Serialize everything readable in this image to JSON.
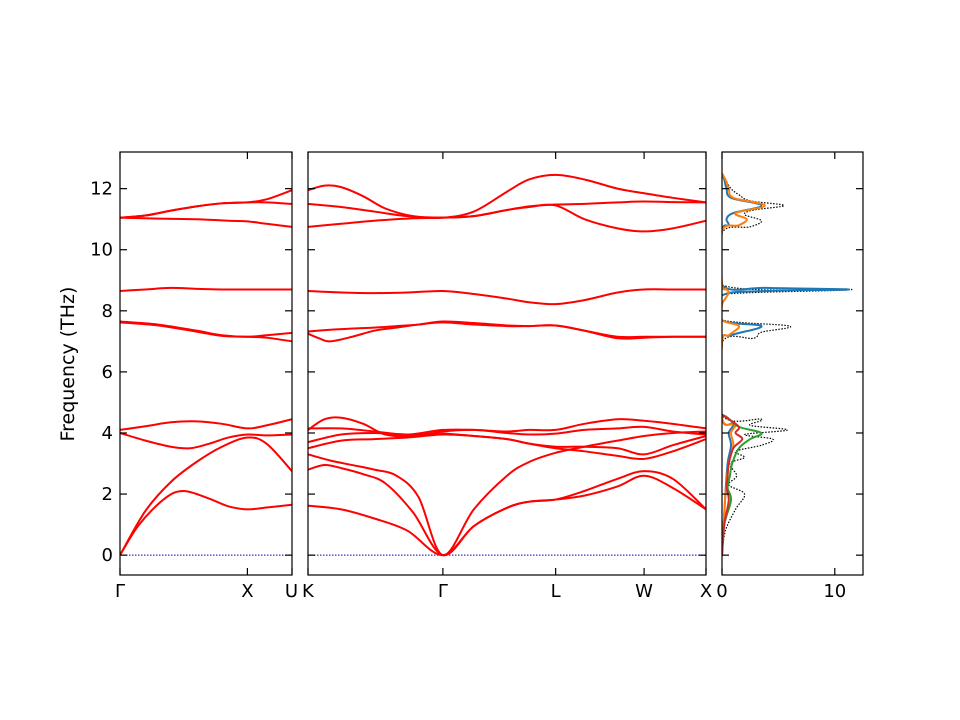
{
  "chart_data": {
    "type": "line",
    "title": "",
    "ylabel": "Frequency (THz)",
    "ylim": [
      -0.65,
      13.2
    ],
    "yticks": [
      0,
      2,
      4,
      6,
      8,
      10,
      12
    ],
    "band_color": "#ff0000",
    "zero_line_color": "#0000cc",
    "panels": [
      {
        "name": "band-gamma-x-u",
        "tick_labels": [
          "Γ",
          "X",
          "U"
        ],
        "xlim": [
          0,
          1.35
        ],
        "label_positions": [
          0,
          1.0,
          1.35
        ],
        "series": [
          {
            "x": [
              0,
              0.15,
              0.35,
              0.5,
              0.7,
              0.85,
              1.0,
              1.15,
              1.35
            ],
            "values": [
              0,
              1.0,
              1.85,
              2.1,
              1.85,
              1.6,
              1.5,
              1.56,
              1.65
            ]
          },
          {
            "x": [
              0,
              0.2,
              0.4,
              0.6,
              0.8,
              1.0,
              1.15,
              1.35
            ],
            "values": [
              0,
              1.45,
              2.4,
              3.05,
              3.55,
              3.85,
              3.65,
              2.75
            ]
          },
          {
            "x": [
              0,
              0.2,
              0.4,
              0.55,
              0.7,
              0.85,
              1.0,
              1.15,
              1.35
            ],
            "values": [
              4.0,
              3.75,
              3.55,
              3.5,
              3.65,
              3.85,
              3.95,
              3.92,
              3.95
            ]
          },
          {
            "x": [
              0,
              0.2,
              0.4,
              0.6,
              0.8,
              1.0,
              1.15,
              1.35
            ],
            "values": [
              4.1,
              4.22,
              4.35,
              4.38,
              4.3,
              4.15,
              4.25,
              4.45
            ]
          },
          {
            "x": [
              0,
              0.3,
              0.6,
              0.8,
              1.0,
              1.15,
              1.35
            ],
            "values": [
              7.62,
              7.52,
              7.32,
              7.18,
              7.15,
              7.12,
              7.0
            ]
          },
          {
            "x": [
              0,
              0.3,
              0.6,
              0.8,
              1.0,
              1.15,
              1.35
            ],
            "values": [
              7.65,
              7.55,
              7.35,
              7.2,
              7.15,
              7.2,
              7.28
            ]
          },
          {
            "x": [
              0,
              0.2,
              0.4,
              0.6,
              0.8,
              1.0,
              1.35
            ],
            "values": [
              8.65,
              8.7,
              8.75,
              8.72,
              8.7,
              8.7,
              8.7
            ]
          },
          {
            "x": [
              0,
              0.3,
              0.6,
              0.85,
              1.0,
              1.15,
              1.35
            ],
            "values": [
              11.05,
              11.02,
              11.0,
              10.95,
              10.93,
              10.85,
              10.75
            ]
          },
          {
            "x": [
              0,
              0.2,
              0.4,
              0.6,
              0.8,
              1.0,
              1.15,
              1.35
            ],
            "values": [
              11.05,
              11.12,
              11.28,
              11.42,
              11.52,
              11.55,
              11.55,
              11.5
            ]
          },
          {
            "x": [
              0,
              0.2,
              0.4,
              0.6,
              0.8,
              1.0,
              1.15,
              1.35
            ],
            "values": [
              11.05,
              11.12,
              11.28,
              11.42,
              11.52,
              11.55,
              11.65,
              11.95
            ]
          }
        ]
      },
      {
        "name": "band-k-gamma-l-w-x",
        "tick_labels": [
          "K",
          "Γ",
          "L",
          "W",
          "X"
        ],
        "xlim": [
          0,
          3.6
        ],
        "label_positions": [
          0,
          1.22,
          2.24,
          3.04,
          3.6
        ],
        "series": [
          {
            "x": [
              0,
              0.3,
              0.6,
              0.9,
              1.22,
              1.5,
              1.8,
              2.0,
              2.24,
              2.5,
              2.8,
              3.04,
              3.3,
              3.6
            ],
            "values": [
              1.62,
              1.5,
              1.2,
              0.8,
              0,
              0.95,
              1.55,
              1.75,
              1.82,
              1.95,
              2.25,
              2.6,
              2.2,
              1.5
            ]
          },
          {
            "x": [
              0,
              0.15,
              0.3,
              0.5,
              0.7,
              0.95,
              1.22,
              1.5,
              1.8,
              2.0,
              2.24,
              2.5,
              2.8,
              3.04,
              3.3,
              3.6
            ],
            "values": [
              2.8,
              2.95,
              2.85,
              2.65,
              2.35,
              1.4,
              0,
              0.95,
              1.55,
              1.75,
              1.82,
              2.1,
              2.5,
              2.75,
              2.5,
              1.5
            ]
          },
          {
            "x": [
              0,
              0.2,
              0.4,
              0.6,
              0.8,
              1.0,
              1.22,
              1.5,
              1.8,
              2.0,
              2.24,
              2.5,
              2.8,
              3.04,
              3.3,
              3.6
            ],
            "values": [
              3.3,
              3.1,
              2.95,
              2.8,
              2.6,
              1.9,
              0,
              1.5,
              2.6,
              3.05,
              3.35,
              3.55,
              3.75,
              3.9,
              4.0,
              4.05
            ]
          },
          {
            "x": [
              0,
              0.3,
              0.6,
              0.9,
              1.22,
              1.5,
              1.8,
              2.0,
              2.24,
              2.5,
              2.8,
              3.04,
              3.3,
              3.6
            ],
            "values": [
              3.5,
              3.75,
              3.8,
              3.85,
              3.95,
              3.9,
              3.8,
              3.65,
              3.5,
              3.4,
              3.25,
              3.15,
              3.4,
              3.8
            ]
          },
          {
            "x": [
              0,
              0.3,
              0.6,
              0.9,
              1.22,
              1.5,
              1.8,
              2.0,
              2.24,
              2.5,
              2.8,
              3.04,
              3.3,
              3.6
            ],
            "values": [
              3.7,
              3.95,
              4.0,
              3.95,
              3.98,
              3.9,
              3.8,
              3.65,
              3.55,
              3.55,
              3.5,
              3.3,
              3.6,
              3.9
            ]
          },
          {
            "x": [
              0,
              0.15,
              0.3,
              0.5,
              0.7,
              0.95,
              1.22,
              1.5,
              1.8,
              2.0,
              2.24,
              2.5,
              2.8,
              3.04,
              3.3,
              3.6
            ],
            "values": [
              4.1,
              4.45,
              4.5,
              4.3,
              3.95,
              3.9,
              4.05,
              4.1,
              4.0,
              3.95,
              3.98,
              4.1,
              4.15,
              4.2,
              4.05,
              3.95
            ]
          },
          {
            "x": [
              0,
              0.3,
              0.6,
              0.9,
              1.22,
              1.5,
              1.8,
              2.0,
              2.24,
              2.5,
              2.8,
              3.04,
              3.3,
              3.6
            ],
            "values": [
              4.15,
              4.15,
              4.05,
              3.95,
              4.1,
              4.1,
              4.05,
              4.1,
              4.1,
              4.3,
              4.45,
              4.4,
              4.3,
              4.15
            ]
          },
          {
            "x": [
              0,
              0.1,
              0.2,
              0.4,
              0.6,
              0.8,
              1.0,
              1.22,
              1.5,
              1.8,
              2.0,
              2.24,
              2.5,
              2.8,
              3.04,
              3.3,
              3.6
            ],
            "values": [
              7.25,
              7.1,
              7.0,
              7.15,
              7.35,
              7.45,
              7.55,
              7.62,
              7.55,
              7.5,
              7.5,
              7.52,
              7.35,
              7.1,
              7.12,
              7.15,
              7.15
            ]
          },
          {
            "x": [
              0,
              0.2,
              0.4,
              0.6,
              0.8,
              1.0,
              1.22,
              1.5,
              1.8,
              2.0,
              2.24,
              2.5,
              2.8,
              3.04,
              3.3,
              3.6
            ],
            "values": [
              7.32,
              7.38,
              7.42,
              7.45,
              7.5,
              7.55,
              7.65,
              7.6,
              7.52,
              7.5,
              7.52,
              7.35,
              7.15,
              7.15,
              7.15,
              7.15
            ]
          },
          {
            "x": [
              0,
              0.3,
              0.6,
              0.9,
              1.22,
              1.5,
              1.8,
              2.0,
              2.24,
              2.5,
              2.8,
              3.04,
              3.3,
              3.6
            ],
            "values": [
              8.65,
              8.6,
              8.58,
              8.6,
              8.65,
              8.55,
              8.4,
              8.28,
              8.22,
              8.35,
              8.6,
              8.7,
              8.7,
              8.7
            ]
          },
          {
            "x": [
              0,
              0.3,
              0.6,
              0.9,
              1.22,
              1.5,
              1.8,
              2.0,
              2.24,
              2.5,
              2.8,
              3.04,
              3.3,
              3.6
            ],
            "values": [
              10.75,
              10.85,
              10.95,
              11.02,
              11.05,
              11.1,
              11.3,
              11.4,
              11.45,
              11.0,
              10.7,
              10.6,
              10.7,
              10.95
            ]
          },
          {
            "x": [
              0,
              0.3,
              0.6,
              0.9,
              1.22,
              1.5,
              1.8,
              2.0,
              2.24,
              2.5,
              2.8,
              3.04,
              3.3,
              3.6
            ],
            "values": [
              11.5,
              11.4,
              11.25,
              11.1,
              11.05,
              11.1,
              11.3,
              11.42,
              11.48,
              11.5,
              11.55,
              11.58,
              11.56,
              11.55
            ]
          },
          {
            "x": [
              0,
              0.15,
              0.3,
              0.5,
              0.7,
              0.95,
              1.22,
              1.5,
              1.8,
              2.0,
              2.24,
              2.5,
              2.8,
              3.04,
              3.3,
              3.6
            ],
            "values": [
              11.95,
              12.1,
              12.05,
              11.75,
              11.35,
              11.1,
              11.05,
              11.25,
              11.9,
              12.3,
              12.45,
              12.3,
              12.0,
              11.85,
              11.7,
              11.55
            ]
          }
        ]
      },
      {
        "name": "dos",
        "tick_labels": [
          "0",
          "10"
        ],
        "xlim": [
          0,
          12.5
        ],
        "label_positions": [
          0,
          10
        ],
        "series": [
          {
            "name": "total",
            "color": "#000000",
            "dotted": true,
            "y": [
              0,
              0.8,
              1.5,
              2.0,
              2.3,
              2.6,
              3.0,
              3.2,
              3.4,
              3.6,
              3.8,
              3.95,
              4.1,
              4.25,
              4.45,
              4.6,
              6.95,
              7.1,
              7.3,
              7.5,
              7.7,
              8.2,
              8.55,
              8.7,
              8.85,
              10.55,
              10.75,
              10.95,
              11.15,
              11.3,
              11.45,
              11.6,
              11.8,
              12.0,
              12.3,
              12.5
            ],
            "values": [
              0,
              0.3,
              1.2,
              2.0,
              0.6,
              1.3,
              0.7,
              2.0,
              1.2,
              3.5,
              4.5,
              2.0,
              5.8,
              2.5,
              3.5,
              0,
              0,
              2.8,
              3.5,
              6.0,
              0,
              0,
              0.5,
              11.5,
              0,
              0,
              2.5,
              3.5,
              2.0,
              2.8,
              5.5,
              2.5,
              1.5,
              0.8,
              0.3,
              0
            ]
          },
          {
            "name": "c1",
            "color": "#1f77b4",
            "y": [
              0,
              2.0,
              3.0,
              3.6,
              4.0,
              4.3,
              4.5,
              6.95,
              7.2,
              7.5,
              7.7,
              8.5,
              8.65,
              8.7,
              8.75,
              8.85,
              10.6,
              10.8,
              11.0,
              11.2,
              11.45,
              11.7,
              12.0,
              12.3,
              12.5
            ],
            "values": [
              0,
              0.3,
              0.5,
              0.8,
              0.6,
              1.0,
              0,
              0,
              0.8,
              3.5,
              0,
              0,
              4.0,
              11.2,
              4.0,
              0,
              0,
              0.6,
              0.4,
              1.0,
              3.5,
              0.8,
              0.4,
              0.2,
              0
            ]
          },
          {
            "name": "c2",
            "color": "#ff7f0e",
            "y": [
              0,
              2.0,
              3.0,
              3.6,
              4.0,
              4.3,
              4.5,
              6.95,
              7.2,
              7.5,
              7.7,
              8.2,
              8.4,
              8.6,
              8.7,
              8.9,
              10.6,
              10.8,
              11.0,
              11.2,
              11.45,
              11.7,
              12.0,
              12.3,
              12.5
            ],
            "values": [
              0,
              0.3,
              0.6,
              1.0,
              0.8,
              1.2,
              0,
              0,
              0.6,
              1.5,
              0,
              0,
              0.3,
              0.6,
              0.4,
              0,
              0,
              1.5,
              2.2,
              1.2,
              3.8,
              1.0,
              0.6,
              0.3,
              0
            ]
          },
          {
            "name": "c3",
            "color": "#2ca02c",
            "y": [
              0,
              1.0,
              1.8,
              2.2,
              2.6,
              3.0,
              3.5,
              3.8,
              4.0,
              4.2,
              4.5,
              4.6
            ],
            "values": [
              0,
              0.2,
              0.8,
              0.5,
              0.7,
              0.9,
              1.5,
              2.5,
              3.5,
              1.5,
              0.5,
              0
            ]
          },
          {
            "name": "c4",
            "color": "#d62728",
            "y": [
              0,
              1.0,
              1.8,
              2.2,
              2.6,
              3.0,
              3.5,
              3.8,
              4.0,
              4.2,
              4.5,
              4.6
            ],
            "values": [
              0,
              0.2,
              0.6,
              0.4,
              0.5,
              0.6,
              1.0,
              1.8,
              1.2,
              1.5,
              0.4,
              0
            ]
          }
        ]
      }
    ]
  }
}
